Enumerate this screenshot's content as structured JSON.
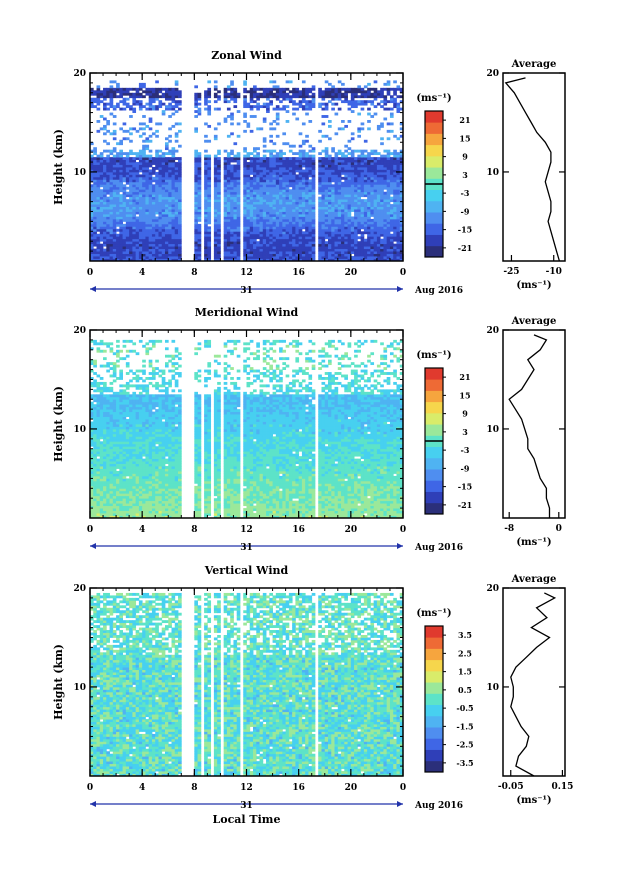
{
  "figure": {
    "xlabel": "Local Time",
    "date_label": "Aug 2016",
    "day_label": "31",
    "y_label": "Height (km)",
    "unit_label": "(ms⁻¹)",
    "avg_title": "Average",
    "avg_unit": "(ms⁻¹)",
    "x_ticks": [
      "0",
      "4",
      "8",
      "12",
      "16",
      "20",
      "0"
    ],
    "y_ticks": [
      "10",
      "20"
    ]
  },
  "colors": {
    "scale": [
      "#2b2f7a",
      "#2f3fb8",
      "#3f66e6",
      "#4f8ef0",
      "#4fb3f2",
      "#47d0f0",
      "#5de3c8",
      "#9be89a",
      "#d9ec6a",
      "#f6d64c",
      "#f6a53e",
      "#ee6a35",
      "#e03a2e"
    ]
  },
  "chart_data": [
    {
      "type": "heatmap",
      "title": "Zonal Wind",
      "ylabel": "Height (km)",
      "xlim": [
        0,
        24
      ],
      "ylim": [
        1,
        20
      ],
      "colorbar_ticks": [
        "21",
        "15",
        "9",
        "3",
        "-3",
        "-9",
        "-15",
        "-21"
      ],
      "colorbar_range": [
        -24,
        24
      ],
      "contour_level": 0,
      "data_gaps_hours": [
        [
          7.1,
          8.0
        ],
        [
          8.5,
          8.7
        ],
        [
          9.2,
          9.4
        ],
        [
          10.0,
          10.2
        ],
        [
          11.4,
          11.7
        ],
        [
          15.9,
          16.1
        ],
        [
          17.2,
          17.6
        ]
      ],
      "average_profile": {
        "title": "Average",
        "xlim": [
          -28,
          -6
        ],
        "xticks": [
          "-25",
          "-10"
        ],
        "height": [
          1,
          2,
          3,
          4,
          5,
          6,
          7,
          8,
          9,
          10,
          11,
          12,
          13,
          14,
          15,
          16,
          17,
          18,
          19,
          19.5
        ],
        "value": [
          -8,
          -9,
          -10,
          -11,
          -12,
          -11,
          -11,
          -12,
          -13,
          -12,
          -11,
          -11,
          -13,
          -16,
          -18,
          -20,
          -22,
          -24,
          -27,
          -20
        ]
      }
    },
    {
      "type": "heatmap",
      "title": "Meridional Wind",
      "ylabel": "Height (km)",
      "xlim": [
        0,
        24
      ],
      "ylim": [
        1,
        20
      ],
      "colorbar_ticks": [
        "21",
        "15",
        "9",
        "3",
        "-3",
        "-9",
        "-15",
        "-21"
      ],
      "colorbar_range": [
        -24,
        24
      ],
      "contour_level": 0,
      "data_gaps_hours": [
        [
          7.1,
          8.0
        ],
        [
          8.5,
          8.7
        ],
        [
          9.2,
          9.4
        ],
        [
          10.0,
          10.2
        ],
        [
          11.4,
          11.7
        ],
        [
          15.9,
          16.1
        ],
        [
          17.2,
          17.6
        ]
      ],
      "average_profile": {
        "title": "Average",
        "xlim": [
          -9,
          1
        ],
        "xticks": [
          "-8",
          "0"
        ],
        "height": [
          1,
          2,
          3,
          4,
          5,
          6,
          7,
          8,
          9,
          10,
          11,
          12,
          13,
          14,
          15,
          16,
          17,
          18,
          19,
          19.5
        ],
        "value": [
          -1.5,
          -1.5,
          -2,
          -2,
          -3,
          -3.5,
          -4,
          -5,
          -5,
          -5.5,
          -6,
          -7,
          -8,
          -6,
          -5,
          -4,
          -5,
          -3,
          -2,
          -4
        ]
      }
    },
    {
      "type": "heatmap",
      "title": "Vertical Wind",
      "ylabel": "Height (km)",
      "xlim": [
        0,
        24
      ],
      "ylim": [
        1,
        20
      ],
      "colorbar_ticks": [
        "3.5",
        "2.5",
        "1.5",
        "0.5",
        "-0.5",
        "-1.5",
        "-2.5",
        "-3.5"
      ],
      "colorbar_range": [
        -4,
        4
      ],
      "contour_level": null,
      "data_gaps_hours": [
        [
          7.1,
          8.0
        ],
        [
          8.5,
          8.7
        ],
        [
          9.2,
          9.4
        ],
        [
          10.0,
          10.2
        ],
        [
          11.4,
          11.7
        ],
        [
          15.9,
          16.1
        ],
        [
          17.2,
          17.6
        ]
      ],
      "average_profile": {
        "title": "Average",
        "xlim": [
          -0.08,
          0.16
        ],
        "xticks": [
          "-0.05",
          "0.15"
        ],
        "height": [
          1,
          2,
          3,
          4,
          5,
          6,
          7,
          8,
          9,
          10,
          11,
          12,
          13,
          14,
          15,
          16,
          17,
          18,
          19,
          19.5
        ],
        "value": [
          0.04,
          -0.03,
          -0.02,
          0.01,
          0.02,
          -0.01,
          -0.03,
          -0.05,
          -0.04,
          -0.04,
          -0.05,
          -0.03,
          0.01,
          0.05,
          0.1,
          0.03,
          0.09,
          0.05,
          0.12,
          0.08
        ]
      }
    }
  ]
}
